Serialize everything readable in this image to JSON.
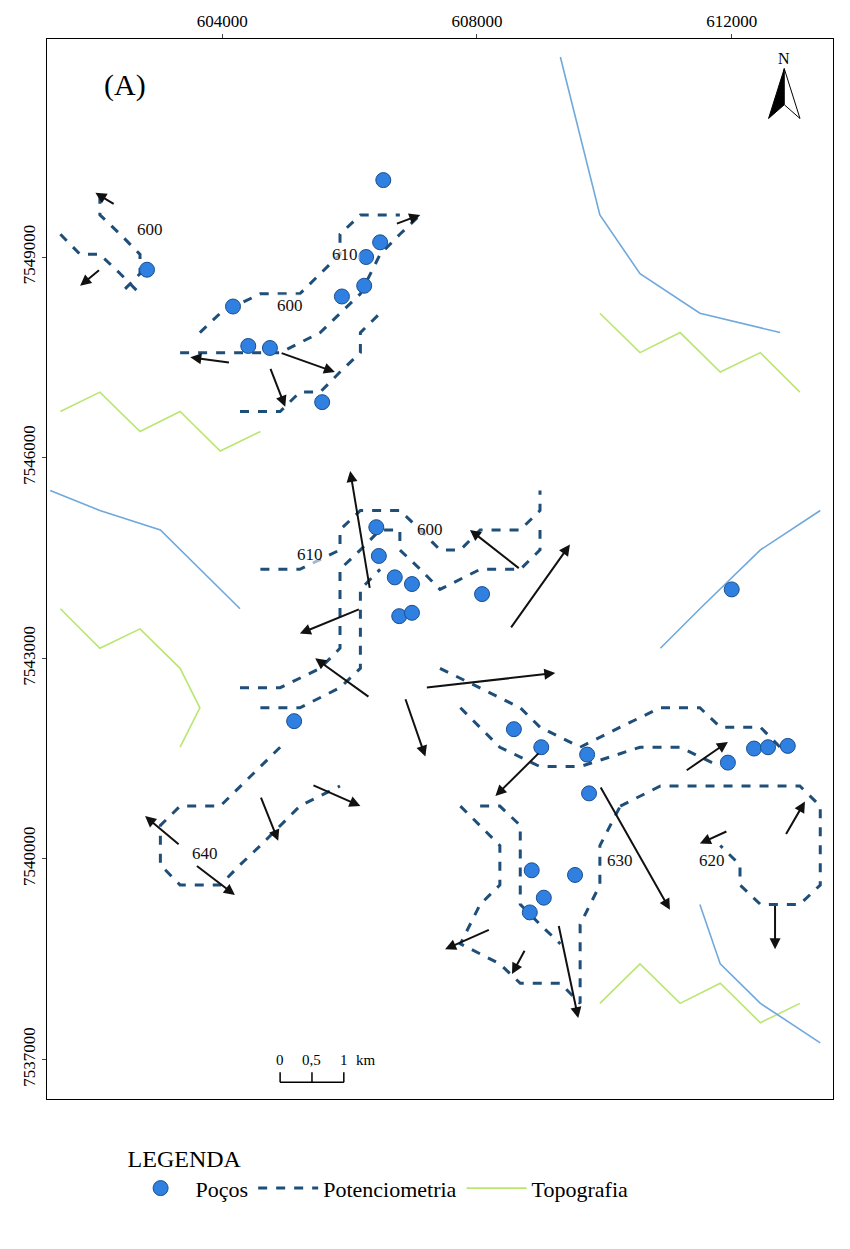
{
  "chart_data": {
    "type": "map",
    "title": "(A)",
    "north": "N",
    "xlim": [
      601250,
      613590
    ],
    "ylim": [
      7536410,
      7552260
    ],
    "xticks": [
      604000,
      608000,
      612000
    ],
    "yticks": [
      7537000,
      7540000,
      7543000,
      7546000,
      7549000
    ],
    "grid": false,
    "legend": "bottom",
    "legend_title": "LEGENDA",
    "series": [
      {
        "name": "Topografia",
        "type": "line",
        "color": "#b8e66e",
        "line_style": "solid",
        "segments": [
          {
            "x": [
              601460,
              602080,
              602710,
              603340,
              603970,
              604600
            ],
            "y": [
              7546690,
              7546980,
              7546390,
              7546690,
              7546100,
              7546390
            ]
          },
          {
            "x": [
              609930,
              610560,
              611190,
              611820,
              612450,
              613070
            ],
            "y": [
              7548160,
              7547570,
              7547870,
              7547280,
              7547570,
              7546980
            ]
          },
          {
            "x": [
              609930,
              610560,
              611190,
              611820,
              612450,
              613070
            ],
            "y": [
              7537840,
              7538430,
              7537840,
              7538140,
              7537550,
              7537840
            ]
          },
          {
            "x": [
              601460,
              602080,
              602710,
              603340,
              603650,
              603340
            ],
            "y": [
              7543740,
              7543150,
              7543440,
              7542850,
              7542260,
              7541670
            ]
          }
        ]
      },
      {
        "type": "line",
        "color": "#6fa8dc",
        "line_style": "solid",
        "segments": [
          {
            "x": [
              609310,
              609620,
              609930,
              610560,
              611500,
              612760
            ],
            "y": [
              7551990,
              7550810,
              7549630,
              7548750,
              7548160,
              7547870
            ]
          },
          {
            "x": [
              601300,
              602080,
              603030,
              603650,
              604280
            ],
            "y": [
              7545510,
              7545210,
              7544920,
              7544330,
              7543740
            ]
          },
          {
            "x": [
              611500,
              611820,
              612450,
              613390
            ],
            "y": [
              7539320,
              7538430,
              7537840,
              7537250
            ]
          },
          {
            "x": [
              613390,
              612450,
              611500,
              610880
            ],
            "y": [
              7545210,
              7544620,
              7543740,
              7543150
            ]
          }
        ]
      },
      {
        "name": "Potenciometria",
        "type": "line",
        "color": "#1f4e79",
        "line_style": "dashed",
        "segments": [
          {
            "x": [
              602080,
              602080,
              602400,
              602710,
              602710,
              602400
            ],
            "y": [
              7549930,
              7549630,
              7549340,
              7549040,
              7548750,
              7548450
            ]
          },
          {
            "x": [
              601460,
              601770,
              602080,
              602400,
              602710
            ],
            "y": [
              7549340,
              7549040,
              7549040,
              7548750,
              7548450
            ]
          },
          {
            "x": [
              603650,
              603970,
              604600,
              605220,
              605540,
              605850,
              605850,
              606170,
              606790
            ],
            "y": [
              7547870,
              7548160,
              7548450,
              7548450,
              7548750,
              7549040,
              7549340,
              7549630,
              7549630
            ]
          },
          {
            "x": [
              603340,
              604280,
              604910,
              605540,
              605850,
              606170,
              606480,
              606790,
              607110
            ],
            "y": [
              7547570,
              7547570,
              7547570,
              7547870,
              7548160,
              7548450,
              7549040,
              7549340,
              7549630
            ]
          },
          {
            "x": [
              604280,
              604910,
              605220,
              605540,
              605850,
              606170,
              606170,
              606480
            ],
            "y": [
              7546690,
              7546690,
              7546980,
              7546980,
              7547280,
              7547570,
              7547870,
              7548160
            ]
          },
          {
            "x": [
              604600,
              605220,
              605850,
              605850,
              606170,
              606790,
              607110,
              607420,
              607740,
              608050,
              608680,
              608990,
              608990
            ],
            "y": [
              7544330,
              7544330,
              7544620,
              7544920,
              7545210,
              7545210,
              7544920,
              7544620,
              7544620,
              7544920,
              7544920,
              7545210,
              7545510
            ]
          },
          {
            "x": [
              604280,
              604910,
              605540,
              605850,
              605850,
              605850,
              606170,
              606480,
              606790,
              606790,
              607110,
              607420,
              608050,
              608680,
              608990,
              608990
            ],
            "y": [
              7542560,
              7542560,
              7542850,
              7543150,
              7543740,
              7544330,
              7544620,
              7544920,
              7544920,
              7544620,
              7544330,
              7544030,
              7544330,
              7544330,
              7544620,
              7544920
            ]
          },
          {
            "x": [
              604600,
              605220,
              605850,
              606170,
              606170,
              606170,
              606480
            ],
            "y": [
              7542260,
              7542260,
              7542560,
              7542850,
              7543440,
              7544030,
              7544330
            ]
          },
          {
            "x": [
              607420,
              608050,
              608680,
              608990,
              609620,
              610250,
              610880,
              611500,
              611820,
              612450,
              612760
            ],
            "y": [
              7542850,
              7542560,
              7542260,
              7541970,
              7541670,
              7541970,
              7542260,
              7542260,
              7541970,
              7541970,
              7541670
            ]
          },
          {
            "x": [
              607740,
              608360,
              608990,
              609620,
              610560,
              611190,
              611820
            ],
            "y": [
              7542260,
              7541670,
              7541380,
              7541380,
              7541670,
              7541670,
              7541380
            ]
          },
          {
            "x": [
              610250,
              610880,
              611500,
              612130,
              612760,
              613070,
              613390,
              613390,
              613390,
              613070,
              612760,
              612450,
              612130,
              612130,
              611820
            ],
            "y": [
              7540790,
              7541090,
              7541090,
              7541090,
              7541090,
              7541090,
              7540790,
              7540200,
              7539610,
              7539320,
              7539320,
              7539320,
              7539610,
              7539910,
              7540200
            ]
          },
          {
            "x": [
              607740,
              608050,
              608360,
              608360,
              608050,
              607740,
              608360,
              608680,
              609310,
              609620,
              609620,
              609620,
              609930,
              609930,
              610250
            ],
            "y": [
              7540790,
              7540500,
              7540200,
              7539610,
              7539320,
              7538730,
              7538430,
              7538140,
              7538140,
              7537840,
              7538430,
              7539020,
              7539610,
              7540200,
              7540790
            ]
          },
          {
            "x": [
              608050,
              608360,
              608680,
              608680,
              608680,
              608990,
              609310
            ],
            "y": [
              7540790,
              7540790,
              7540500,
              7539910,
              7539320,
              7539020,
              7538730
            ]
          },
          {
            "x": [
              604910,
              604600,
              604280,
              603970,
              603340,
              603030,
              603030,
              603340,
              603970,
              604280,
              604600,
              604910,
              605220,
              605850
            ],
            "y": [
              7541670,
              7541380,
              7541090,
              7540790,
              7540790,
              7540500,
              7539910,
              7539610,
              7539610,
              7539910,
              7540200,
              7540500,
              7540790,
              7541090
            ]
          }
        ]
      },
      {
        "name": "Poços",
        "type": "scatter",
        "marker": "circle",
        "color": "#2f80e0",
        "x": [
          606530,
          602820,
          604170,
          604410,
          604750,
          605570,
          605880,
          606230,
          606480,
          606260,
          606420,
          606460,
          606710,
          606980,
          606780,
          606980,
          608080,
          605130,
          608580,
          609010,
          609730,
          609760,
          612000,
          611940,
          612350,
          612570,
          612880,
          608860,
          609540,
          609050,
          608830
        ],
        "y": [
          7550150,
          7548810,
          7548260,
          7547670,
          7547640,
          7546830,
          7548410,
          7548570,
          7549220,
          7549000,
          7544960,
          7544530,
          7544210,
          7544110,
          7543630,
          7543680,
          7543960,
          7542060,
          7541940,
          7541670,
          7541560,
          7540980,
          7544030,
          7541440,
          7541650,
          7541670,
          7541690,
          7539830,
          7539760,
          7539420,
          7539200
        ]
      }
    ],
    "contour_labels": [
      {
        "text": "600",
        "x": 602870,
        "y": 7549410
      },
      {
        "text": "610",
        "x": 605930,
        "y": 7549040
      },
      {
        "text": "600",
        "x": 605070,
        "y": 7548280
      },
      {
        "text": "610",
        "x": 605380,
        "y": 7544550
      },
      {
        "text": "600",
        "x": 607270,
        "y": 7544920
      },
      {
        "text": "640",
        "x": 603730,
        "y": 7540080
      },
      {
        "text": "630",
        "x": 610250,
        "y": 7539980
      },
      {
        "text": "620",
        "x": 611690,
        "y": 7539980
      }
    ],
    "flow_arrows": [
      [
        606320,
        7544030,
        606010,
        7545800
      ],
      [
        606170,
        7543740,
        605220,
        7543370
      ],
      [
        606320,
        7542410,
        605460,
        7543000
      ],
      [
        607190,
        7542560,
        609230,
        7542780
      ],
      [
        606870,
        7542410,
        607190,
        7541530
      ],
      [
        608520,
        7543440,
        609460,
        7544700
      ],
      [
        608680,
        7544330,
        607890,
        7544920
      ],
      [
        608990,
        7541600,
        608290,
        7540940
      ],
      [
        609930,
        7541090,
        611030,
        7539240
      ],
      [
        611270,
        7541310,
        611940,
        7541750
      ],
      [
        605410,
        7541110,
        606170,
        7540790
      ],
      [
        604600,
        7540940,
        604880,
        7540270
      ],
      [
        603340,
        7540200,
        602790,
        7540640
      ],
      [
        603580,
        7539910,
        604200,
        7539460
      ],
      [
        609280,
        7539020,
        609590,
        7537620
      ],
      [
        608760,
        7538650,
        608550,
        7538280
      ],
      [
        608210,
        7538950,
        607500,
        7538650
      ],
      [
        604910,
        7547570,
        605770,
        7547280
      ],
      [
        604130,
        7547420,
        603500,
        7547500
      ],
      [
        606720,
        7549490,
        607110,
        7549630
      ],
      [
        602320,
        7549780,
        602010,
        7549960
      ],
      [
        602090,
        7548820,
        601770,
        7548570
      ],
      [
        611940,
        7540420,
        611500,
        7540230
      ],
      [
        612840,
        7540350,
        613150,
        7540860
      ],
      [
        612680,
        7539320,
        612680,
        7538650
      ],
      [
        604750,
        7547350,
        604990,
        7546760
      ]
    ],
    "scale_bar": {
      "x": 604910,
      "y": 7536660,
      "unit": "km",
      "ticks": [
        0,
        {
          "value": 0.5,
          "label": "0,5"
        },
        1
      ]
    }
  }
}
